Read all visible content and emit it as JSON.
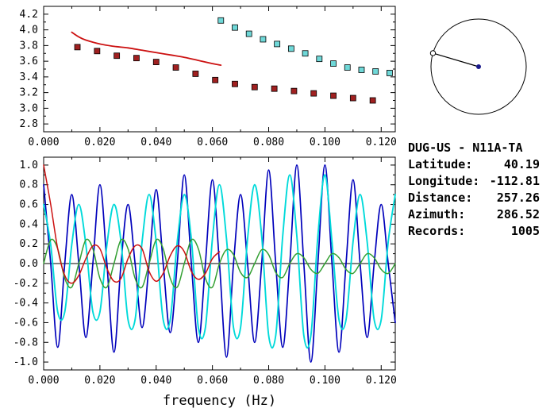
{
  "station_info": {
    "header": "DUG-US - N11A-TA",
    "rows": [
      {
        "label": "Latitude:",
        "value": "40.19"
      },
      {
        "label": "Longitude:",
        "value": "-112.81"
      },
      {
        "label": "Distance:",
        "value": "257.26"
      },
      {
        "label": "Azimuth:",
        "value": "286.52"
      },
      {
        "label": "Records:",
        "value": "1005"
      }
    ]
  },
  "azimuth_dial": {
    "azimuth_deg": 286.52,
    "line_color": "#000000",
    "center_dot_color": "#1a1a8c"
  },
  "chart_data": [
    {
      "id": "dispersion",
      "type": "scatter",
      "title": "",
      "xlabel": "",
      "ylabel": "",
      "xlim": [
        0,
        0.125
      ],
      "ylim": [
        2.7,
        4.3
      ],
      "xticks": [
        0,
        0.02,
        0.04,
        0.06,
        0.08,
        0.1,
        0.12
      ],
      "xtick_labels": [
        "0.000",
        "0.020",
        "0.040",
        "0.060",
        "0.080",
        "0.100",
        "0.120"
      ],
      "xminor": [
        0.01,
        0.03,
        0.05,
        0.07,
        0.09,
        0.11
      ],
      "yticks": [
        2.8,
        3.0,
        3.2,
        3.4,
        3.6,
        3.8,
        4.0,
        4.2
      ],
      "ytick_labels": [
        "2.8",
        "3.0",
        "3.2",
        "3.4",
        "3.6",
        "3.8",
        "4.0",
        "4.2"
      ],
      "yminor": [
        2.9,
        3.1,
        3.3,
        3.5,
        3.7,
        3.9,
        4.1
      ],
      "series": [
        {
          "name": "red-curve",
          "kind": "line",
          "color": "#cc1111",
          "width": 1.8,
          "x": [
            0.01,
            0.0125,
            0.015,
            0.02,
            0.025,
            0.03,
            0.035,
            0.04,
            0.045,
            0.05,
            0.055,
            0.06,
            0.063
          ],
          "y": [
            3.97,
            3.91,
            3.87,
            3.82,
            3.79,
            3.77,
            3.74,
            3.71,
            3.68,
            3.65,
            3.61,
            3.57,
            3.55
          ]
        },
        {
          "name": "red-squares",
          "kind": "scatter",
          "marker": "square",
          "color": "#a02020",
          "x": [
            0.012,
            0.019,
            0.026,
            0.033,
            0.04,
            0.047,
            0.054,
            0.061,
            0.068,
            0.075,
            0.082,
            0.089,
            0.096,
            0.103,
            0.11,
            0.117
          ],
          "y": [
            3.78,
            3.73,
            3.67,
            3.64,
            3.59,
            3.52,
            3.44,
            3.36,
            3.31,
            3.27,
            3.25,
            3.22,
            3.19,
            3.16,
            3.13,
            3.1
          ]
        },
        {
          "name": "cyan-squares",
          "kind": "scatter",
          "marker": "square",
          "color": "#6fd8d8",
          "x": [
            0.063,
            0.068,
            0.073,
            0.078,
            0.083,
            0.088,
            0.093,
            0.098,
            0.103,
            0.108,
            0.113,
            0.118,
            0.123
          ],
          "y": [
            4.12,
            4.03,
            3.95,
            3.88,
            3.82,
            3.76,
            3.7,
            3.63,
            3.57,
            3.52,
            3.49,
            3.47,
            3.45
          ]
        }
      ]
    },
    {
      "id": "waveforms",
      "type": "line",
      "title": "",
      "xlabel": "frequency (Hz)",
      "ylabel": "",
      "xlim": [
        0,
        0.125
      ],
      "ylim": [
        -1.08,
        1.08
      ],
      "zero_line": true,
      "xticks": [
        0,
        0.02,
        0.04,
        0.06,
        0.08,
        0.1,
        0.12
      ],
      "xtick_labels": [
        "0.000",
        "0.020",
        "0.040",
        "0.060",
        "0.080",
        "0.100",
        "0.120"
      ],
      "xminor": [
        0.01,
        0.03,
        0.05,
        0.07,
        0.09,
        0.11
      ],
      "yticks": [
        1.0,
        0.8,
        0.6,
        0.4,
        0.2,
        0.0,
        -0.2,
        -0.4,
        -0.6,
        -0.8,
        -1.0
      ],
      "ytick_labels": [
        "1.0",
        "0.8",
        "0.6",
        "0.4",
        "0.2",
        "0.0",
        "-0.2",
        "-0.4",
        "-0.6",
        "-0.8",
        "-1.0"
      ],
      "yminor": [
        0.9,
        0.7,
        0.5,
        0.3,
        0.1,
        -0.1,
        -0.3,
        -0.5,
        -0.7,
        -0.9
      ],
      "series": [
        {
          "name": "blue-trace",
          "kind": "line",
          "color": "#0000bb",
          "width": 1.7,
          "x0": 0,
          "dx": 0.0025,
          "y": [
            0.8,
            0,
            -0.85,
            0,
            0.7,
            0,
            -0.75,
            0,
            0.8,
            0,
            -0.9,
            0,
            0.6,
            0,
            -0.65,
            0,
            0.75,
            0,
            -0.7,
            0,
            0.9,
            0,
            -0.8,
            0,
            0.85,
            0,
            -0.95,
            0,
            0.7,
            0,
            -0.8,
            0,
            0.95,
            0,
            -0.85,
            0,
            1.0,
            0,
            -1.0,
            0,
            1.0,
            0,
            -0.9,
            0,
            0.85,
            0,
            -0.75,
            0,
            0.6,
            0,
            -0.6
          ]
        },
        {
          "name": "cyan-trace",
          "kind": "line",
          "color": "#00dada",
          "width": 1.9,
          "x0": 0,
          "dx": 0.0025,
          "y": [
            0.6,
            0.19,
            -0.49,
            -0.49,
            0.19,
            0.6,
            0.19,
            -0.49,
            -0.49,
            0.19,
            0.6,
            0.22,
            -0.57,
            -0.57,
            0.22,
            0.7,
            0.22,
            -0.57,
            -0.57,
            0.22,
            0.7,
            0.25,
            -0.65,
            -0.65,
            0.25,
            0.8,
            0.25,
            -0.65,
            -0.65,
            0.25,
            0.8,
            0.28,
            -0.73,
            -0.73,
            0.28,
            0.9,
            0.28,
            -0.73,
            -0.73,
            0.28,
            0.9,
            0.22,
            -0.57,
            -0.57,
            0.22,
            0.7,
            0.22,
            -0.57,
            -0.57,
            0.22,
            0.7
          ]
        },
        {
          "name": "green-trace",
          "kind": "line",
          "color": "#33a033",
          "width": 1.5,
          "x0": 0,
          "dx": 0.0025,
          "y": [
            0.0,
            0.24,
            0.15,
            -0.15,
            -0.24,
            0.0,
            0.24,
            0.15,
            -0.15,
            -0.24,
            0.0,
            0.24,
            0.15,
            -0.15,
            -0.24,
            0.0,
            0.24,
            0.15,
            -0.15,
            -0.24,
            0.0,
            0.24,
            0.15,
            -0.15,
            -0.24,
            0.0,
            0.14,
            0.09,
            -0.09,
            -0.14,
            0.0,
            0.14,
            0.09,
            -0.09,
            -0.14,
            0.0,
            0.1,
            0.06,
            -0.06,
            -0.1,
            0.0,
            0.1,
            0.06,
            -0.06,
            -0.1,
            0.0,
            0.1,
            0.06,
            -0.06,
            -0.1,
            0.0
          ]
        },
        {
          "name": "red-trace",
          "kind": "line",
          "color": "#cc1111",
          "width": 1.5,
          "x0": 0,
          "dx": 0.0025,
          "y": [
            1.0,
            0.6,
            0.15,
            -0.12,
            -0.2,
            -0.12,
            0.05,
            0.18,
            0.15,
            -0.05,
            -0.18,
            -0.15,
            0.05,
            0.18,
            0.15,
            -0.08,
            -0.18,
            -0.1,
            0.08,
            0.18,
            0.12,
            -0.08,
            -0.16,
            -0.1,
            0.05,
            0.12
          ]
        }
      ]
    }
  ]
}
